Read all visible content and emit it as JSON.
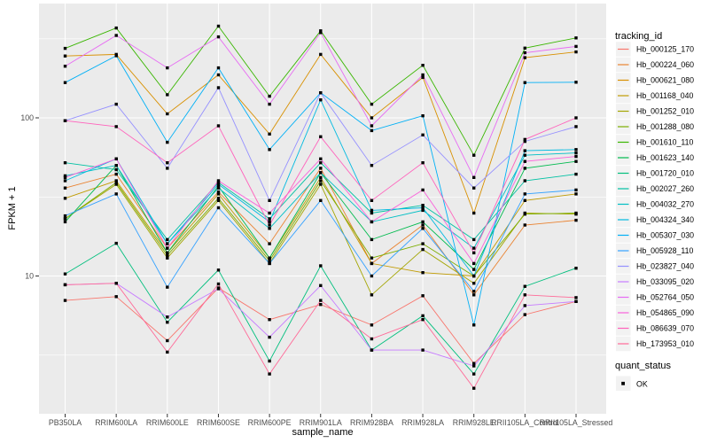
{
  "chart_data": {
    "type": "line",
    "title": "",
    "xlabel": "sample_name",
    "ylabel": "FPKM + 1",
    "y_scale": "log10",
    "y_major_ticks": [
      10,
      100
    ],
    "y_minor_gridlines": [
      3.16,
      31.6,
      316
    ],
    "ylim": [
      1.35,
      527
    ],
    "grid": "on",
    "legend_position": "right",
    "legend_titles": {
      "color": "tracking_id",
      "shape": "quant_status"
    },
    "quant_status_values": [
      "OK"
    ],
    "marker": "black-square",
    "categories": [
      "PB350LA",
      "RRIM600LA",
      "RRIM600LE",
      "RRIM600SE",
      "RRIM600PE",
      "RRIM901LA",
      "RRIM928BA",
      "RRIM928LA",
      "RRIM928LE",
      "RRII105LA_Control",
      "RRII105LA_Stressed"
    ],
    "series": [
      {
        "name": "Hb_000125_170",
        "color": "#F8766D",
        "values": [
          7.0,
          7.4,
          3.9,
          8.4,
          5.3,
          6.6,
          4.9,
          7.5,
          2.8,
          5.7,
          6.9
        ]
      },
      {
        "name": "Hb_000224_060",
        "color": "#EA8331",
        "values": [
          36,
          44,
          15,
          34,
          16,
          48,
          12,
          21,
          7.6,
          21,
          22.5
        ]
      },
      {
        "name": "Hb_000621_080",
        "color": "#D89000",
        "values": [
          246,
          252,
          106,
          187,
          79,
          252,
          100,
          180,
          25,
          240,
          261
        ]
      },
      {
        "name": "Hb_001168_040",
        "color": "#C09B00",
        "values": [
          31,
          40,
          14,
          33,
          13,
          42,
          12,
          10.5,
          10,
          30,
          33
        ]
      },
      {
        "name": "Hb_001252_010",
        "color": "#A3A500",
        "values": [
          23,
          38,
          13,
          30,
          12,
          38,
          7.6,
          14.7,
          9,
          25,
          24.6
        ]
      },
      {
        "name": "Hb_001288_080",
        "color": "#7CAE00",
        "values": [
          23,
          39,
          13.5,
          31,
          12.5,
          40,
          13,
          16,
          10,
          24.6,
          25
        ]
      },
      {
        "name": "Hb_001610_110",
        "color": "#39B600",
        "values": [
          275,
          370,
          140,
          380,
          137,
          355,
          122,
          215,
          58,
          276,
          320
        ]
      },
      {
        "name": "Hb_001623_140",
        "color": "#00BB4E",
        "values": [
          22,
          50,
          14,
          37,
          13,
          45,
          17,
          22,
          11,
          48,
          53
        ]
      },
      {
        "name": "Hb_001720_010",
        "color": "#00BF7D",
        "values": [
          10.3,
          16.1,
          5.1,
          10.9,
          2.9,
          11.6,
          3.4,
          5.6,
          2.4,
          8.6,
          11.2
        ]
      },
      {
        "name": "Hb_002027_260",
        "color": "#00C1A3",
        "values": [
          52,
          47,
          17,
          39,
          23,
          52,
          25,
          28,
          17,
          40,
          44
        ]
      },
      {
        "name": "Hb_004032_270",
        "color": "#00BFC4",
        "values": [
          43,
          50,
          16,
          36,
          20,
          45,
          22,
          26,
          15,
          58,
          60
        ]
      },
      {
        "name": "Hb_004324_340",
        "color": "#00BAE0",
        "values": [
          40,
          55,
          16,
          38,
          22,
          130,
          26,
          27,
          10,
          62,
          63
        ]
      },
      {
        "name": "Hb_005307_030",
        "color": "#00B0F6",
        "values": [
          167,
          247,
          70,
          207,
          63,
          144,
          83,
          103,
          4.9,
          167,
          168
        ]
      },
      {
        "name": "Hb_005928_110",
        "color": "#35A2FF",
        "values": [
          24,
          33,
          8.5,
          27,
          12,
          30,
          10,
          20,
          8,
          33,
          35
        ]
      },
      {
        "name": "Hb_023827_040",
        "color": "#9590FF",
        "values": [
          96,
          122,
          48,
          155,
          30,
          144,
          50,
          78,
          36,
          71,
          88
        ]
      },
      {
        "name": "Hb_033095_020",
        "color": "#C77CFF",
        "values": [
          8.8,
          9.0,
          5.5,
          8.3,
          4.1,
          8.7,
          3.4,
          3.4,
          2.7,
          6.5,
          6.9
        ]
      },
      {
        "name": "Hb_052764_050",
        "color": "#E76BF3",
        "values": [
          212,
          332,
          207,
          325,
          122,
          346,
          89,
          187,
          42,
          258,
          283
        ]
      },
      {
        "name": "Hb_054865_090",
        "color": "#FA62DB",
        "values": [
          42,
          55,
          15,
          40,
          25,
          55,
          22,
          35,
          12,
          53,
          57
        ]
      },
      {
        "name": "Hb_086639_070",
        "color": "#FF62BC",
        "values": [
          96,
          88,
          52,
          89,
          21,
          76,
          30,
          52,
          14,
          73,
          100
        ]
      },
      {
        "name": "Hb_173953_010",
        "color": "#FF6A98",
        "values": [
          8.8,
          9.0,
          3.3,
          8.9,
          2.4,
          7.0,
          4.0,
          5.3,
          1.95,
          7.6,
          7.3
        ]
      }
    ]
  },
  "colors": {
    "background": "#FFFFFF",
    "panel_bg": "#EBEBEB",
    "grid": "#FFFFFF",
    "axis_text": "#4D4D4D",
    "title_text": "#000000",
    "legend_key_bg": "#F2F2F2",
    "marker": "#000000",
    "tick": "#333333"
  }
}
